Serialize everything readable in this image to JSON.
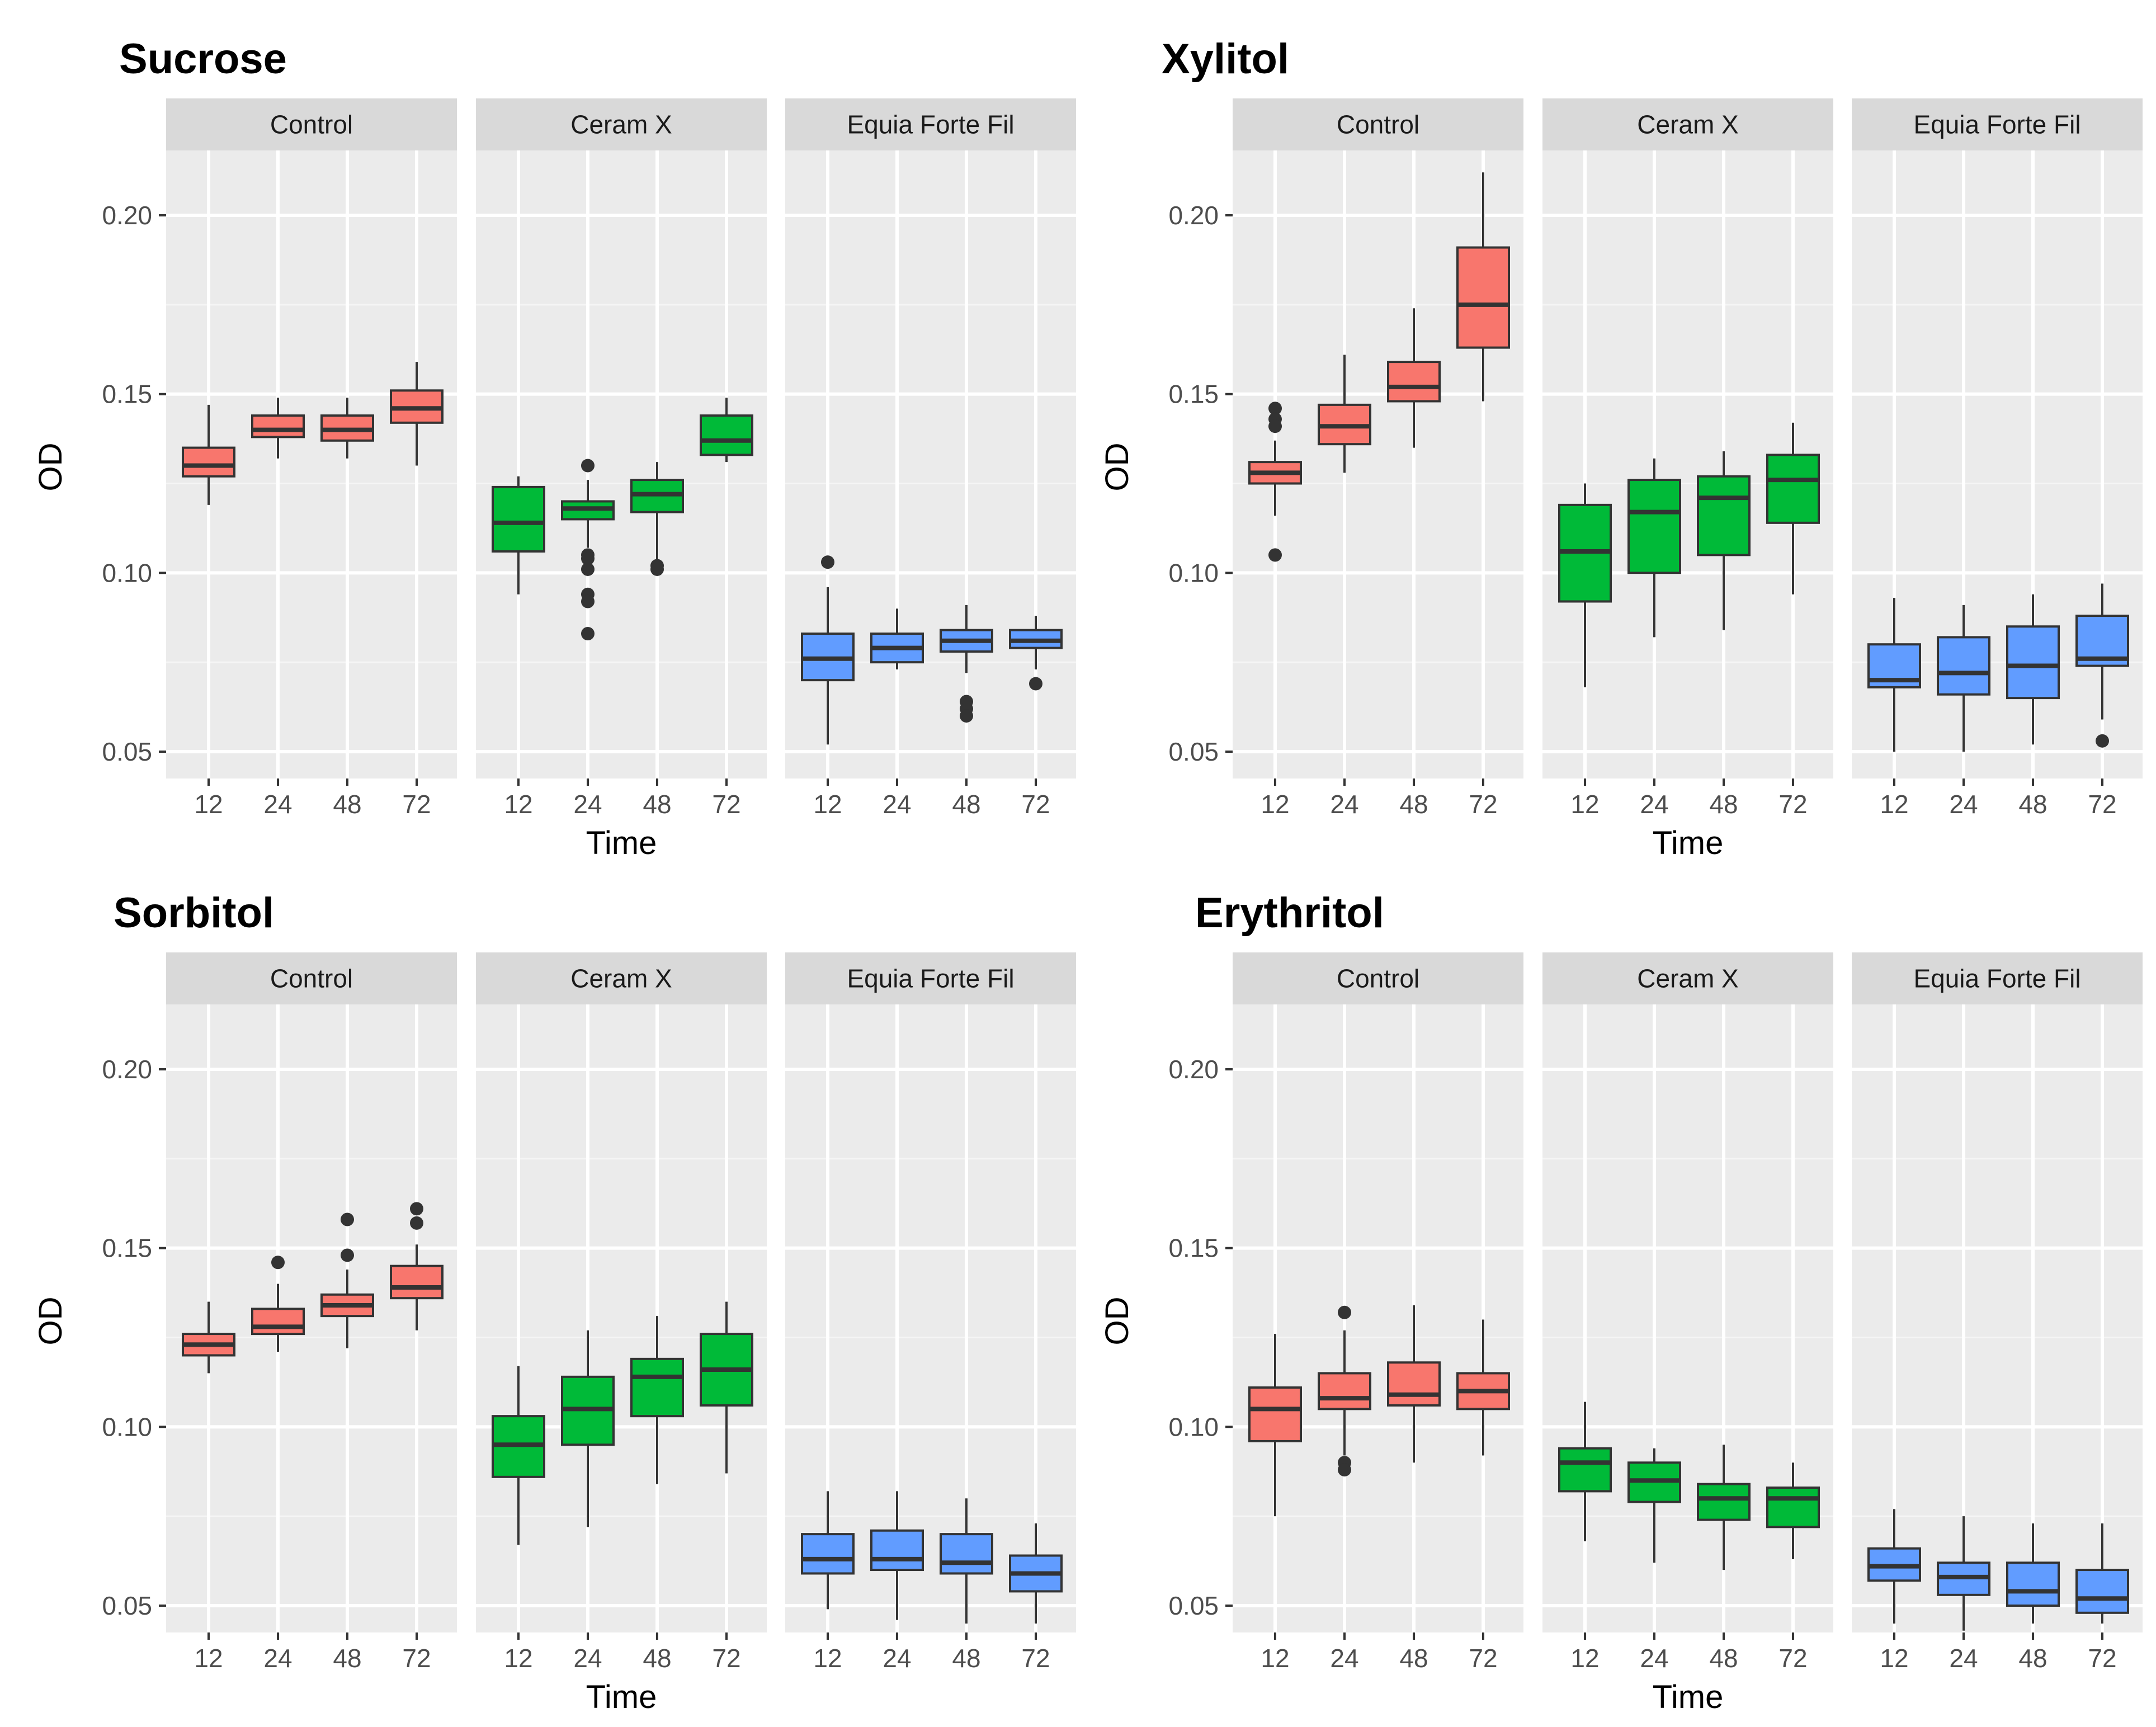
{
  "chart_data": [
    {
      "type": "boxplot",
      "title": "Sucrose",
      "xlabel": "Time",
      "ylabel": "OD",
      "yticks": [
        "0.05",
        "0.10",
        "0.15",
        "0.20"
      ],
      "ylim": [
        0.045,
        0.22
      ],
      "facets": [
        {
          "label": "Control",
          "color": "#F8766D",
          "boxes": [
            {
              "x": "12",
              "whisker_low": 0.119,
              "q1": 0.127,
              "median": 0.13,
              "q3": 0.135,
              "whisker_high": 0.147,
              "outliers": []
            },
            {
              "x": "24",
              "whisker_low": 0.132,
              "q1": 0.138,
              "median": 0.14,
              "q3": 0.144,
              "whisker_high": 0.149,
              "outliers": []
            },
            {
              "x": "48",
              "whisker_low": 0.132,
              "q1": 0.137,
              "median": 0.14,
              "q3": 0.144,
              "whisker_high": 0.149,
              "outliers": []
            },
            {
              "x": "72",
              "whisker_low": 0.13,
              "q1": 0.142,
              "median": 0.146,
              "q3": 0.151,
              "whisker_high": 0.159,
              "outliers": []
            }
          ]
        },
        {
          "label": "Ceram X",
          "color": "#00BA38",
          "boxes": [
            {
              "x": "12",
              "whisker_low": 0.094,
              "q1": 0.106,
              "median": 0.114,
              "q3": 0.124,
              "whisker_high": 0.127,
              "outliers": []
            },
            {
              "x": "24",
              "whisker_low": 0.107,
              "q1": 0.115,
              "median": 0.118,
              "q3": 0.12,
              "whisker_high": 0.126,
              "outliers": [
                0.13,
                0.105,
                0.104,
                0.101,
                0.094,
                0.092,
                0.083
              ]
            },
            {
              "x": "48",
              "whisker_low": 0.103,
              "q1": 0.117,
              "median": 0.122,
              "q3": 0.126,
              "whisker_high": 0.131,
              "outliers": [
                0.102,
                0.101
              ]
            },
            {
              "x": "72",
              "whisker_low": 0.131,
              "q1": 0.133,
              "median": 0.137,
              "q3": 0.144,
              "whisker_high": 0.149,
              "outliers": []
            }
          ]
        },
        {
          "label": "Equia Forte Fil",
          "color": "#619CFF",
          "boxes": [
            {
              "x": "12",
              "whisker_low": 0.052,
              "q1": 0.07,
              "median": 0.076,
              "q3": 0.083,
              "whisker_high": 0.096,
              "outliers": [
                0.103
              ]
            },
            {
              "x": "24",
              "whisker_low": 0.073,
              "q1": 0.075,
              "median": 0.079,
              "q3": 0.083,
              "whisker_high": 0.09,
              "outliers": []
            },
            {
              "x": "48",
              "whisker_low": 0.072,
              "q1": 0.078,
              "median": 0.081,
              "q3": 0.084,
              "whisker_high": 0.091,
              "outliers": [
                0.064,
                0.062,
                0.06
              ]
            },
            {
              "x": "72",
              "whisker_low": 0.073,
              "q1": 0.079,
              "median": 0.081,
              "q3": 0.084,
              "whisker_high": 0.088,
              "outliers": [
                0.069
              ]
            }
          ]
        }
      ]
    },
    {
      "type": "boxplot",
      "title": "Xylitol",
      "xlabel": "Time",
      "ylabel": "OD",
      "yticks": [
        "0.05",
        "0.10",
        "0.15",
        "0.20"
      ],
      "ylim": [
        0.045,
        0.22
      ],
      "facets": [
        {
          "label": "Control",
          "color": "#F8766D",
          "boxes": [
            {
              "x": "12",
              "whisker_low": 0.116,
              "q1": 0.125,
              "median": 0.128,
              "q3": 0.131,
              "whisker_high": 0.137,
              "outliers": [
                0.146,
                0.143,
                0.141,
                0.105
              ]
            },
            {
              "x": "24",
              "whisker_low": 0.128,
              "q1": 0.136,
              "median": 0.141,
              "q3": 0.147,
              "whisker_high": 0.161,
              "outliers": []
            },
            {
              "x": "48",
              "whisker_low": 0.135,
              "q1": 0.148,
              "median": 0.152,
              "q3": 0.159,
              "whisker_high": 0.174,
              "outliers": []
            },
            {
              "x": "72",
              "whisker_low": 0.148,
              "q1": 0.163,
              "median": 0.175,
              "q3": 0.191,
              "whisker_high": 0.212,
              "outliers": []
            }
          ]
        },
        {
          "label": "Ceram X",
          "color": "#00BA38",
          "boxes": [
            {
              "x": "12",
              "whisker_low": 0.068,
              "q1": 0.092,
              "median": 0.106,
              "q3": 0.119,
              "whisker_high": 0.125,
              "outliers": []
            },
            {
              "x": "24",
              "whisker_low": 0.082,
              "q1": 0.1,
              "median": 0.117,
              "q3": 0.126,
              "whisker_high": 0.132,
              "outliers": []
            },
            {
              "x": "48",
              "whisker_low": 0.084,
              "q1": 0.105,
              "median": 0.121,
              "q3": 0.127,
              "whisker_high": 0.134,
              "outliers": []
            },
            {
              "x": "72",
              "whisker_low": 0.094,
              "q1": 0.114,
              "median": 0.126,
              "q3": 0.133,
              "whisker_high": 0.142,
              "outliers": []
            }
          ]
        },
        {
          "label": "Equia Forte Fil",
          "color": "#619CFF",
          "boxes": [
            {
              "x": "12",
              "whisker_low": 0.05,
              "q1": 0.068,
              "median": 0.07,
              "q3": 0.08,
              "whisker_high": 0.093,
              "outliers": []
            },
            {
              "x": "24",
              "whisker_low": 0.05,
              "q1": 0.066,
              "median": 0.072,
              "q3": 0.082,
              "whisker_high": 0.091,
              "outliers": []
            },
            {
              "x": "48",
              "whisker_low": 0.052,
              "q1": 0.065,
              "median": 0.074,
              "q3": 0.085,
              "whisker_high": 0.094,
              "outliers": []
            },
            {
              "x": "72",
              "whisker_low": 0.059,
              "q1": 0.074,
              "median": 0.076,
              "q3": 0.088,
              "whisker_high": 0.097,
              "outliers": [
                0.053
              ]
            }
          ]
        }
      ]
    },
    {
      "type": "boxplot",
      "title": "Sorbitol",
      "xlabel": "Time",
      "ylabel": "OD",
      "yticks": [
        "0.05",
        "0.10",
        "0.15",
        "0.20"
      ],
      "ylim": [
        0.045,
        0.22
      ],
      "facets": [
        {
          "label": "Control",
          "color": "#F8766D",
          "boxes": [
            {
              "x": "12",
              "whisker_low": 0.115,
              "q1": 0.12,
              "median": 0.123,
              "q3": 0.126,
              "whisker_high": 0.135,
              "outliers": []
            },
            {
              "x": "24",
              "whisker_low": 0.121,
              "q1": 0.126,
              "median": 0.128,
              "q3": 0.133,
              "whisker_high": 0.14,
              "outliers": [
                0.146
              ]
            },
            {
              "x": "48",
              "whisker_low": 0.122,
              "q1": 0.131,
              "median": 0.134,
              "q3": 0.137,
              "whisker_high": 0.144,
              "outliers": [
                0.158,
                0.148
              ]
            },
            {
              "x": "72",
              "whisker_low": 0.127,
              "q1": 0.136,
              "median": 0.139,
              "q3": 0.145,
              "whisker_high": 0.151,
              "outliers": [
                0.161,
                0.157
              ]
            }
          ]
        },
        {
          "label": "Ceram X",
          "color": "#00BA38",
          "boxes": [
            {
              "x": "12",
              "whisker_low": 0.067,
              "q1": 0.086,
              "median": 0.095,
              "q3": 0.103,
              "whisker_high": 0.117,
              "outliers": []
            },
            {
              "x": "24",
              "whisker_low": 0.072,
              "q1": 0.095,
              "median": 0.105,
              "q3": 0.114,
              "whisker_high": 0.127,
              "outliers": []
            },
            {
              "x": "48",
              "whisker_low": 0.084,
              "q1": 0.103,
              "median": 0.114,
              "q3": 0.119,
              "whisker_high": 0.131,
              "outliers": []
            },
            {
              "x": "72",
              "whisker_low": 0.087,
              "q1": 0.106,
              "median": 0.116,
              "q3": 0.126,
              "whisker_high": 0.135,
              "outliers": []
            }
          ]
        },
        {
          "label": "Equia Forte Fil",
          "color": "#619CFF",
          "boxes": [
            {
              "x": "12",
              "whisker_low": 0.049,
              "q1": 0.059,
              "median": 0.063,
              "q3": 0.07,
              "whisker_high": 0.082,
              "outliers": []
            },
            {
              "x": "24",
              "whisker_low": 0.046,
              "q1": 0.06,
              "median": 0.063,
              "q3": 0.071,
              "whisker_high": 0.082,
              "outliers": []
            },
            {
              "x": "48",
              "whisker_low": 0.045,
              "q1": 0.059,
              "median": 0.062,
              "q3": 0.07,
              "whisker_high": 0.08,
              "outliers": []
            },
            {
              "x": "72",
              "whisker_low": 0.045,
              "q1": 0.054,
              "median": 0.059,
              "q3": 0.064,
              "whisker_high": 0.073,
              "outliers": []
            }
          ]
        }
      ]
    },
    {
      "type": "boxplot",
      "title": "Erythritol",
      "xlabel": "Time",
      "ylabel": "OD",
      "yticks": [
        "0.05",
        "0.10",
        "0.15",
        "0.20"
      ],
      "ylim": [
        0.045,
        0.22
      ],
      "facets": [
        {
          "label": "Control",
          "color": "#F8766D",
          "boxes": [
            {
              "x": "12",
              "whisker_low": 0.075,
              "q1": 0.096,
              "median": 0.105,
              "q3": 0.111,
              "whisker_high": 0.126,
              "outliers": []
            },
            {
              "x": "24",
              "whisker_low": 0.092,
              "q1": 0.105,
              "median": 0.108,
              "q3": 0.115,
              "whisker_high": 0.127,
              "outliers": [
                0.132,
                0.09,
                0.088
              ]
            },
            {
              "x": "48",
              "whisker_low": 0.09,
              "q1": 0.106,
              "median": 0.109,
              "q3": 0.118,
              "whisker_high": 0.134,
              "outliers": []
            },
            {
              "x": "72",
              "whisker_low": 0.092,
              "q1": 0.105,
              "median": 0.11,
              "q3": 0.115,
              "whisker_high": 0.13,
              "outliers": []
            }
          ]
        },
        {
          "label": "Ceram X",
          "color": "#00BA38",
          "boxes": [
            {
              "x": "12",
              "whisker_low": 0.068,
              "q1": 0.082,
              "median": 0.09,
              "q3": 0.094,
              "whisker_high": 0.107,
              "outliers": []
            },
            {
              "x": "24",
              "whisker_low": 0.062,
              "q1": 0.079,
              "median": 0.085,
              "q3": 0.09,
              "whisker_high": 0.094,
              "outliers": []
            },
            {
              "x": "48",
              "whisker_low": 0.06,
              "q1": 0.074,
              "median": 0.08,
              "q3": 0.084,
              "whisker_high": 0.095,
              "outliers": []
            },
            {
              "x": "72",
              "whisker_low": 0.063,
              "q1": 0.072,
              "median": 0.08,
              "q3": 0.083,
              "whisker_high": 0.09,
              "outliers": []
            }
          ]
        },
        {
          "label": "Equia Forte Fil",
          "color": "#619CFF",
          "boxes": [
            {
              "x": "12",
              "whisker_low": 0.045,
              "q1": 0.057,
              "median": 0.061,
              "q3": 0.066,
              "whisker_high": 0.077,
              "outliers": []
            },
            {
              "x": "24",
              "whisker_low": 0.043,
              "q1": 0.053,
              "median": 0.058,
              "q3": 0.062,
              "whisker_high": 0.075,
              "outliers": []
            },
            {
              "x": "48",
              "whisker_low": 0.045,
              "q1": 0.05,
              "median": 0.054,
              "q3": 0.062,
              "whisker_high": 0.073,
              "outliers": []
            },
            {
              "x": "72",
              "whisker_low": 0.045,
              "q1": 0.048,
              "median": 0.052,
              "q3": 0.06,
              "whisker_high": 0.073,
              "outliers": []
            }
          ]
        }
      ]
    }
  ]
}
